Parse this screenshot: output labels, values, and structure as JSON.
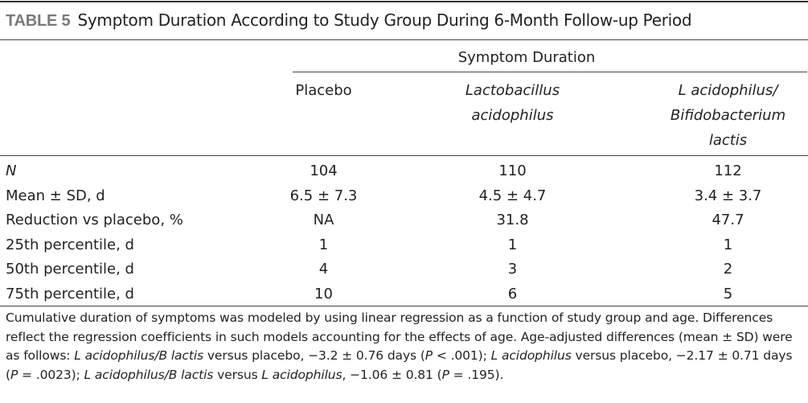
{
  "table": {
    "label": "TABLE 5",
    "title": "Symptom Duration According to Study Group During 6-Month Follow-up Period",
    "spanner": "Symptom Duration",
    "columns": [
      {
        "lines": [
          "Placebo"
        ],
        "italic": false
      },
      {
        "lines": [
          "Lactobacillus",
          "acidophilus"
        ],
        "italic": true
      },
      {
        "lines": [
          "L acidophilus/",
          "Bifidobacterium",
          "lactis"
        ],
        "italic": true
      }
    ],
    "rows": [
      {
        "label": "N",
        "italic": true,
        "values": [
          "104",
          "110",
          "112"
        ]
      },
      {
        "label": "Mean ± SD, d",
        "italic": false,
        "values": [
          "6.5 ± 7.3",
          "4.5 ± 4.7",
          "3.4 ± 3.7"
        ]
      },
      {
        "label": "Reduction vs placebo, %",
        "italic": false,
        "values": [
          "NA",
          "31.8",
          "47.7"
        ]
      },
      {
        "label": "25th percentile, d",
        "italic": false,
        "values": [
          "1",
          "1",
          "1"
        ]
      },
      {
        "label": "50th percentile, d",
        "italic": false,
        "values": [
          "4",
          "3",
          "2"
        ]
      },
      {
        "label": "75th percentile, d",
        "italic": false,
        "values": [
          "10",
          "6",
          "5"
        ]
      }
    ],
    "footnote": {
      "sentence1": "Cumulative duration of symptoms was modeled by using linear regression as a function of study group and age. Differences reflect the regression coefficients in such models accounting for the effects of age. Age-adjusted differences (mean ± SD) were as follows: ",
      "comp1_name": "L acidophilus/B lactis",
      "comp1_text": " versus placebo, −3.2 ± 0.76 days (",
      "p_symbol": "P",
      "comp1_p": " < .001); ",
      "comp2_name": "L acidophilus",
      "comp2_text": " versus placebo, −2.17 ± 0.71 days (",
      "comp2_p": " = .0023); ",
      "comp3_name": "L acidophilus/B lactis",
      "comp3_mid": " versus ",
      "comp3_ref": "L acidophilus",
      "comp3_text": ", −1.06 ± 0.81 (",
      "comp3_p": " = .195)."
    }
  }
}
